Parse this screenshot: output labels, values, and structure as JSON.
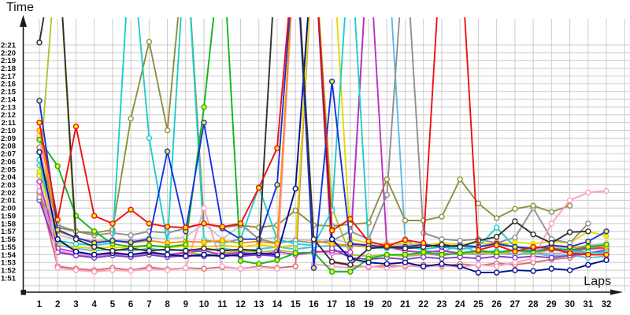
{
  "chart": {
    "y_axis_title": "Time",
    "x_axis_title": "Laps"
  },
  "chart_data": {
    "type": "line",
    "title": "",
    "xlabel": "Laps",
    "ylabel": "Time",
    "x": [
      1,
      2,
      3,
      4,
      5,
      6,
      7,
      8,
      9,
      10,
      11,
      12,
      13,
      14,
      15,
      16,
      17,
      18,
      19,
      20,
      21,
      22,
      23,
      24,
      25,
      26,
      27,
      28,
      29,
      30,
      31,
      32
    ],
    "y_tick_labels": [
      "2:21",
      "2:20",
      "2:19",
      "2:18",
      "2:17",
      "2:16",
      "2:15",
      "2:14",
      "2:13",
      "2:12",
      "2:11",
      "2:10",
      "2:09",
      "2:08",
      "2:07",
      "2:06",
      "2:05",
      "2:04",
      "2:03",
      "2:02",
      "2:01",
      "2:00",
      "1:59",
      "1:58",
      "1:57",
      "1:56",
      "1:55",
      "1:54",
      "1:53",
      "1:52",
      "1:51"
    ],
    "ylim_seconds": [
      111,
      141
    ],
    "grid": true,
    "legend": "none",
    "off_chart_value": 155,
    "note": "values are lap times in seconds; 155 = off-chart spike (pit stop); null = no lap recorded",
    "grid_color": "#cccccc",
    "axis_color": "#1a1a1a",
    "marker_fills": {
      "yellow": "#ffee00",
      "white": "#ffffff"
    },
    "series": [
      {
        "name": "silver",
        "color": "#c6c6c6",
        "marker": "white",
        "values": [
          122.8,
          116.5,
          116.0,
          115.8,
          116.0,
          115.8,
          116.2,
          116.0,
          116.3,
          118.0,
          116.0,
          117.8,
          116.0,
          116.2,
          116.0,
          115.8,
          116.0,
          115.5,
          115.3,
          115.5,
          115.2,
          115.5,
          115.0,
          115.3,
          115.0,
          115.2,
          115.0,
          114.8,
          115.0,
          114.8,
          115.2,
          115.5
        ]
      },
      {
        "name": "salmon",
        "color": "#d96a6a",
        "marker": "white",
        "values": [
          121.9,
          112.5,
          112.2,
          112.0,
          112.3,
          112.0,
          112.4,
          112.1,
          112.3,
          112.2,
          112.4,
          112.2,
          112.5,
          112.3,
          112.5,
          155,
          113.0,
          112.6,
          112.4,
          112.6,
          112.5,
          112.7,
          112.5,
          112.8,
          112.6,
          112.9,
          112.7,
          113.0,
          113.4,
          113.6,
          114.2,
          114.6
        ]
      },
      {
        "name": "violet",
        "color": "#dc82dc",
        "marker": "white",
        "values": [
          122.2,
          114.5,
          114.0,
          113.8,
          114.0,
          113.8,
          114.2,
          113.9,
          114.1,
          114.0,
          113.9,
          114.1,
          113.9,
          114.2,
          155,
          114.5,
          114.2,
          114.0,
          113.8,
          114.0,
          113.9,
          114.1,
          113.9,
          114.2,
          114.0,
          114.2,
          114.0,
          114.3,
          114.1,
          114.3,
          114.2,
          114.4
        ]
      },
      {
        "name": "skyblue",
        "color": "#58bbe8",
        "marker": "white",
        "values": [
          125.5,
          115.2,
          114.8,
          114.5,
          114.7,
          114.5,
          114.8,
          114.5,
          114.7,
          114.5,
          114.8,
          114.5,
          114.7,
          115.0,
          114.7,
          115.0,
          115.2,
          115.0,
          155,
          155,
          116.0,
          114.5,
          114.3,
          115.3,
          114.2,
          114.5,
          114.0,
          114.2,
          113.8,
          114.0,
          113.6,
          113.8
        ]
      },
      {
        "name": "yellowgreen",
        "color": "#a8c832",
        "marker": "white",
        "values": [
          124.2,
          155,
          114.4,
          114.0,
          114.3,
          114.0,
          114.2,
          114.0,
          114.3,
          114.0,
          114.2,
          114.5,
          114.3,
          114.6,
          114.3,
          155,
          120.0,
          114.0,
          113.8,
          114.0,
          113.8,
          114.0,
          114.2,
          114.0,
          114.3,
          114.0,
          114.5,
          114.2,
          114.6,
          114.4,
          114.7,
          114.8
        ]
      },
      {
        "name": "yellow",
        "color": "#e6d800",
        "marker": "yellow",
        "values": [
          124.7,
          115.5,
          115.0,
          114.8,
          115.0,
          114.8,
          115.2,
          114.9,
          115.1,
          115.0,
          115.2,
          115.0,
          115.3,
          115.0,
          115.2,
          155,
          155,
          116.0,
          115.5,
          115.3,
          115.5,
          115.2,
          115.5,
          115.3,
          115.5,
          115.3,
          115.6,
          115.4,
          115.7,
          115.5,
          117.0,
          116.4
        ]
      },
      {
        "name": "magenta",
        "color": "#c030c0",
        "marker": "white",
        "values": [
          123.4,
          114.8,
          114.3,
          114.0,
          114.3,
          114.0,
          114.4,
          114.0,
          114.3,
          114.5,
          114.0,
          114.3,
          114.0,
          114.4,
          114.0,
          114.3,
          114.5,
          114.3,
          155,
          115.0,
          114.5,
          114.3,
          114.5,
          114.2,
          114.5,
          114.3,
          114.6,
          114.4,
          114.7,
          114.5,
          114.8,
          114.9
        ]
      },
      {
        "name": "purple",
        "color": "#8040c0",
        "marker": "white",
        "values": [
          121.0,
          114.3,
          113.9,
          113.6,
          113.9,
          113.7,
          114.0,
          113.7,
          113.9,
          113.8,
          114.0,
          113.8,
          114.0,
          113.8,
          155,
          155,
          114.8,
          113.6,
          113.4,
          113.6,
          113.4,
          113.7,
          113.5,
          113.7,
          113.5,
          113.8,
          113.6,
          113.8,
          113.6,
          113.9,
          114.2,
          114.6
        ]
      },
      {
        "name": "gray",
        "color": "#909090",
        "marker": "white",
        "values": [
          121.4,
          117.8,
          117.0,
          116.5,
          116.8,
          116.5,
          117.0,
          116.8,
          117.4,
          118.0,
          117.5,
          118.0,
          116.0,
          115.5,
          115.8,
          115.5,
          115.8,
          117.0,
          116.0,
          121.7,
          155,
          116.8,
          116.0,
          115.8,
          116.0,
          115.5,
          116.2,
          120.0,
          116.0,
          115.5,
          118.0,
          null
        ]
      },
      {
        "name": "khaki",
        "color": "#8f8f3e",
        "marker": "white",
        "values": [
          127.8,
          117.5,
          117.0,
          116.8,
          117.2,
          131.5,
          141.4,
          130.0,
          155,
          118.0,
          117.5,
          117.8,
          117.5,
          117.8,
          119.7,
          117.8,
          117.7,
          117.9,
          118.1,
          123.7,
          118.4,
          118.4,
          118.9,
          123.7,
          120.6,
          118.7,
          119.9,
          120.3,
          119.5,
          120.3,
          null,
          null
        ]
      },
      {
        "name": "cyan",
        "color": "#20cccc",
        "marker": "white",
        "values": [
          126.2,
          115.8,
          115.4,
          115.2,
          115.5,
          155,
          129.0,
          115.5,
          155,
          115.9,
          115.5,
          116.0,
          122.7,
          116.0,
          115.4,
          115.2,
          119.7,
          155,
          115.0,
          114.8,
          115.0,
          114.7,
          115.0,
          114.7,
          115.0,
          117.5,
          115.0,
          114.5,
          114.8,
          114.5,
          114.3,
          114.2
        ]
      },
      {
        "name": "pink",
        "color": "#ff9ec0",
        "marker": "white",
        "values": [
          129.3,
          112.3,
          112.0,
          111.8,
          112.0,
          111.9,
          112.2,
          112.0,
          112.3,
          120.0,
          112.5,
          112.2,
          112.4,
          112.2,
          155,
          112.8,
          112.5,
          112.3,
          112.5,
          112.3,
          112.6,
          112.4,
          112.6,
          112.4,
          112.7,
          112.5,
          113.0,
          113.5,
          118.0,
          121.0,
          122.0,
          122.2
        ]
      },
      {
        "name": "orange",
        "color": "#ff8c00",
        "marker": "yellow",
        "values": [
          130.0,
          117.0,
          116.2,
          115.6,
          115.8,
          115.5,
          115.8,
          115.5,
          115.7,
          115.6,
          115.8,
          115.5,
          115.7,
          115.4,
          155,
          115.8,
          115.4,
          115.2,
          115.0,
          115.2,
          115.0,
          115.3,
          115.0,
          115.2,
          115.0,
          115.6,
          115.0,
          114.8,
          115.2,
          114.9,
          115.1,
          115.0
        ]
      },
      {
        "name": "green",
        "color": "#10b520",
        "marker": "yellow",
        "values": [
          128.8,
          125.4,
          119.0,
          117.0,
          115.4,
          115.0,
          115.2,
          115.0,
          115.3,
          133.0,
          155,
          113.2,
          112.8,
          113.3,
          114.2,
          114.3,
          111.8,
          111.8,
          113.5,
          114.0,
          114.0,
          114.3,
          114.0,
          114.2,
          114.5,
          114.3,
          114.6,
          114.4,
          114.8,
          114.6,
          115.0,
          115.3
        ]
      },
      {
        "name": "navy",
        "color": "#000f8f",
        "marker": "white",
        "values": [
          127.2,
          116.0,
          114.4,
          114.0,
          114.2,
          114.0,
          114.3,
          114.0,
          113.8,
          114.0,
          113.8,
          114.0,
          114.2,
          114.0,
          122.5,
          155,
          116.0,
          113.5,
          113.0,
          112.8,
          113.0,
          112.5,
          112.8,
          112.5,
          111.7,
          111.7,
          112.0,
          111.9,
          112.2,
          112.0,
          112.7,
          113.3
        ]
      },
      {
        "name": "blue",
        "color": "#1533e0",
        "marker": "yellow",
        "values": [
          133.8,
          117.2,
          116.2,
          115.5,
          115.8,
          115.6,
          116.0,
          127.3,
          117.0,
          131.0,
          117.4,
          116.0,
          116.0,
          123.0,
          155,
          112.3,
          136.3,
          115.4,
          115.2,
          115.0,
          115.0,
          115.3,
          115.0,
          115.2,
          115.0,
          115.4,
          115.0,
          114.8,
          115.2,
          115.0,
          115.7,
          117.0
        ]
      },
      {
        "name": "black",
        "color": "#303030",
        "marker": "white",
        "values": [
          141.3,
          155,
          116.0,
          115.0,
          114.5,
          114.8,
          114.5,
          114.7,
          114.5,
          114.8,
          114.5,
          114.7,
          114.5,
          155,
          155,
          116.0,
          113.1,
          112.7,
          114.8,
          115.0,
          114.8,
          115.0,
          115.3,
          115.0,
          115.8,
          116.3,
          118.3,
          116.6,
          115.5,
          116.9,
          117.0,
          null
        ]
      },
      {
        "name": "red",
        "color": "#ee1111",
        "marker": "yellow",
        "values": [
          131.0,
          118.5,
          130.5,
          119.0,
          118.0,
          119.8,
          118.0,
          117.6,
          117.5,
          118.0,
          117.6,
          118.0,
          122.6,
          127.7,
          155,
          155,
          117.1,
          118.6,
          115.7,
          115.1,
          115.9,
          115.5,
          155,
          155,
          114.6,
          115.2,
          114.4,
          115.0,
          114.8,
          114.2,
          114.0,
          114.0
        ]
      }
    ]
  }
}
